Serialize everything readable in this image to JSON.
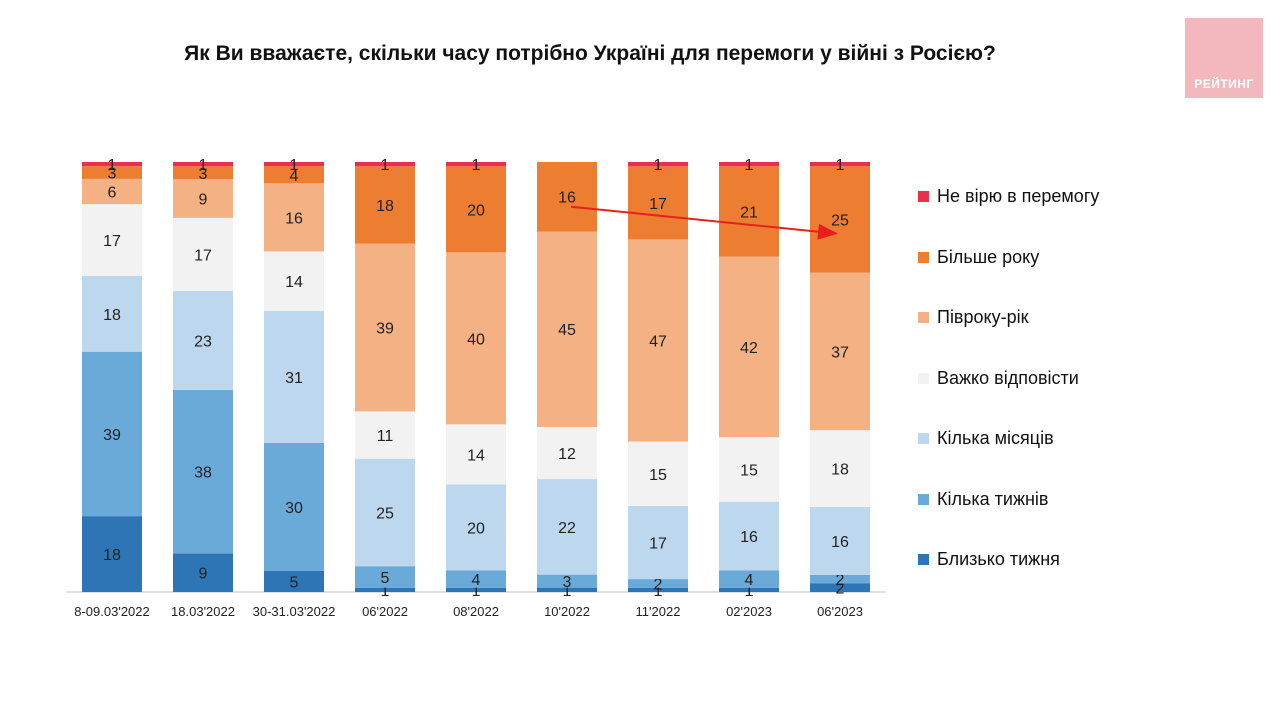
{
  "title": "Як Ви вважаєте, скільки часу потрібно Україні для перемоги у війні з Росією?",
  "logo_text": "РЕЙТИНГ",
  "colors": {
    "logo_bg": "#f2b8bd",
    "arrow": "#e8201c"
  },
  "chart_data": {
    "type": "bar",
    "stacked": true,
    "percent_axis": [
      0,
      100
    ],
    "categories": [
      "8-09.03'2022",
      "18.03'2022",
      "30-31.03'2022",
      "06'2022",
      "08'2022",
      "10'2022",
      "11'2022",
      "02'2023",
      "06'2023"
    ],
    "series": [
      {
        "name": "Близько тижня",
        "color": "#2e75b6",
        "values": [
          18,
          9,
          5,
          1,
          1,
          1,
          1,
          1,
          2
        ]
      },
      {
        "name": "Кілька тижнів",
        "color": "#6aaad8",
        "values": [
          39,
          38,
          30,
          5,
          4,
          3,
          2,
          4,
          2
        ]
      },
      {
        "name": "Кілька місяців",
        "color": "#bdd7ee",
        "values": [
          18,
          23,
          31,
          25,
          20,
          22,
          17,
          16,
          16
        ]
      },
      {
        "name": "Важко відповісти",
        "color": "#f2f2f2",
        "values": [
          17,
          17,
          14,
          11,
          14,
          12,
          15,
          15,
          18
        ]
      },
      {
        "name": "Півроку-рік",
        "color": "#f4b183",
        "values": [
          6,
          9,
          16,
          39,
          40,
          45,
          47,
          42,
          37
        ]
      },
      {
        "name": "Більше року",
        "color": "#ed7d31",
        "values": [
          3,
          3,
          4,
          18,
          20,
          16,
          17,
          21,
          25
        ]
      },
      {
        "name": "Не вірю в перемогу",
        "color": "#e8304a",
        "values": [
          1,
          1,
          1,
          1,
          1,
          0,
          1,
          1,
          1
        ]
      }
    ],
    "legend_order": [
      "Не вірю в перемогу",
      "Більше року",
      "Півроку-рік",
      "Важко відповісти",
      "Кілька місяців",
      "Кілька тижнів",
      "Близько тижня"
    ],
    "legend_position": "right",
    "annotation": {
      "type": "arrow",
      "from": {
        "category": "10'2022",
        "series": "Більше року"
      },
      "to": {
        "category": "06'2023",
        "series": "Більше року"
      }
    }
  }
}
